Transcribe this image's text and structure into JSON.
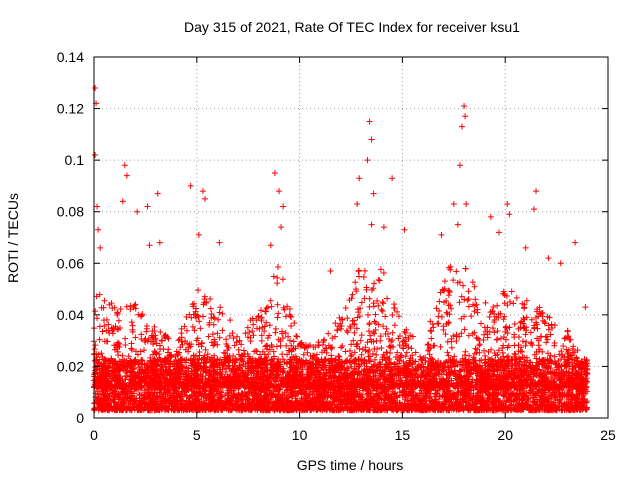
{
  "chart_data": {
    "type": "scatter",
    "title": "Day 315 of 2021, Rate Of TEC Index for receiver ksu1",
    "xlabel": "GPS time / hours",
    "ylabel": "ROTI / TECUs",
    "xlim": [
      0,
      25
    ],
    "ylim": [
      0,
      0.14
    ],
    "xticks": [
      0,
      5,
      10,
      15,
      20,
      25
    ],
    "xtick_labels": [
      "0",
      "5",
      "10",
      "15",
      "20",
      "25"
    ],
    "yticks": [
      0,
      0.02,
      0.04,
      0.06,
      0.08,
      0.1,
      0.12,
      0.14
    ],
    "ytick_labels": [
      "0",
      "0.02",
      "0.04",
      "0.06",
      "0.08",
      "0.1",
      "0.12",
      "0.14"
    ],
    "grid": true,
    "marker": "+",
    "series_color": "#ff0000",
    "notable_points": [
      {
        "x": 0.05,
        "y": 0.128
      },
      {
        "x": 0.1,
        "y": 0.122
      },
      {
        "x": 0.05,
        "y": 0.102
      },
      {
        "x": 0.15,
        "y": 0.082
      },
      {
        "x": 0.2,
        "y": 0.073
      },
      {
        "x": 0.3,
        "y": 0.066
      },
      {
        "x": 1.4,
        "y": 0.084
      },
      {
        "x": 1.5,
        "y": 0.098
      },
      {
        "x": 1.6,
        "y": 0.094
      },
      {
        "x": 2.1,
        "y": 0.08
      },
      {
        "x": 2.6,
        "y": 0.082
      },
      {
        "x": 3.1,
        "y": 0.087
      },
      {
        "x": 3.2,
        "y": 0.068
      },
      {
        "x": 2.7,
        "y": 0.067
      },
      {
        "x": 4.7,
        "y": 0.09
      },
      {
        "x": 5.3,
        "y": 0.088
      },
      {
        "x": 5.4,
        "y": 0.085
      },
      {
        "x": 5.1,
        "y": 0.071
      },
      {
        "x": 6.1,
        "y": 0.068
      },
      {
        "x": 8.8,
        "y": 0.095
      },
      {
        "x": 9.0,
        "y": 0.088
      },
      {
        "x": 9.2,
        "y": 0.082
      },
      {
        "x": 9.1,
        "y": 0.074
      },
      {
        "x": 8.6,
        "y": 0.067
      },
      {
        "x": 11.5,
        "y": 0.057
      },
      {
        "x": 12.9,
        "y": 0.093
      },
      {
        "x": 12.8,
        "y": 0.083
      },
      {
        "x": 13.4,
        "y": 0.115
      },
      {
        "x": 13.5,
        "y": 0.108
      },
      {
        "x": 13.3,
        "y": 0.1
      },
      {
        "x": 13.6,
        "y": 0.087
      },
      {
        "x": 13.5,
        "y": 0.075
      },
      {
        "x": 14.5,
        "y": 0.093
      },
      {
        "x": 14.1,
        "y": 0.074
      },
      {
        "x": 15.1,
        "y": 0.073
      },
      {
        "x": 16.9,
        "y": 0.071
      },
      {
        "x": 17.5,
        "y": 0.083
      },
      {
        "x": 17.8,
        "y": 0.098
      },
      {
        "x": 18.0,
        "y": 0.121
      },
      {
        "x": 18.05,
        "y": 0.117
      },
      {
        "x": 17.9,
        "y": 0.113
      },
      {
        "x": 18.1,
        "y": 0.083
      },
      {
        "x": 17.7,
        "y": 0.075
      },
      {
        "x": 19.3,
        "y": 0.078
      },
      {
        "x": 19.7,
        "y": 0.072
      },
      {
        "x": 20.1,
        "y": 0.083
      },
      {
        "x": 20.2,
        "y": 0.079
      },
      {
        "x": 21.5,
        "y": 0.088
      },
      {
        "x": 21.4,
        "y": 0.081
      },
      {
        "x": 21.0,
        "y": 0.066
      },
      {
        "x": 22.1,
        "y": 0.062
      },
      {
        "x": 22.7,
        "y": 0.06
      },
      {
        "x": 23.4,
        "y": 0.068
      },
      {
        "x": 23.9,
        "y": 0.043
      }
    ],
    "bulk_density": {
      "hours": [
        0,
        1,
        2,
        3,
        4,
        5,
        6,
        7,
        8,
        9,
        10,
        11,
        12,
        13,
        14,
        15,
        16,
        17,
        18,
        19,
        20,
        21,
        22,
        23,
        24
      ],
      "typical_max": [
        0.05,
        0.045,
        0.045,
        0.035,
        0.03,
        0.05,
        0.045,
        0.035,
        0.04,
        0.06,
        0.03,
        0.03,
        0.04,
        0.06,
        0.06,
        0.04,
        0.025,
        0.06,
        0.06,
        0.045,
        0.05,
        0.05,
        0.04,
        0.035,
        0.02
      ],
      "floor": 0.003,
      "median": 0.01
    }
  }
}
